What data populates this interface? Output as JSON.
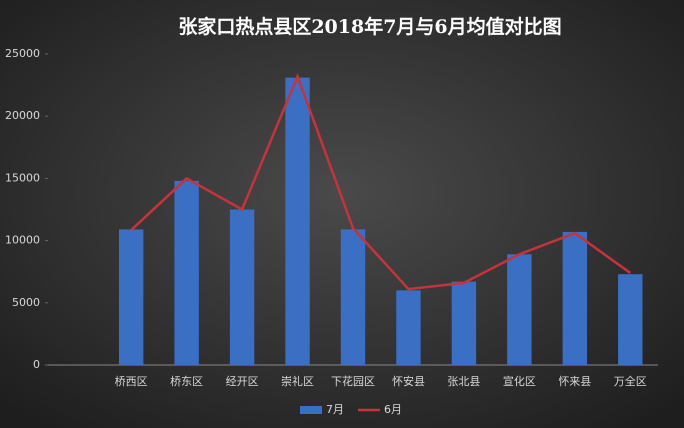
{
  "chart_data": {
    "type": "combo",
    "title": "张家口热点县区2018年7月与6月均值对比图",
    "categories": [
      null,
      "桥西区",
      "桥东区",
      "经开区",
      "崇礼区",
      "下花园区",
      "怀安县",
      "张北县",
      "宣化区",
      "怀来县",
      "万全区"
    ],
    "series": [
      {
        "name": "7月",
        "kind": "bar",
        "color": "#3a6fc4",
        "values": [
          null,
          10900,
          14800,
          12500,
          23100,
          10900,
          6000,
          6700,
          8900,
          10700,
          7300
        ]
      },
      {
        "name": "6月",
        "kind": "line",
        "color": "#c8323c",
        "values": [
          null,
          10850,
          15000,
          12500,
          23200,
          11000,
          6100,
          6600,
          8900,
          10600,
          7400
        ]
      }
    ],
    "ylim": [
      0,
      25000
    ],
    "yticks": [
      0,
      5000,
      10000,
      15000,
      20000,
      25000
    ],
    "grid": false,
    "legend": "bottom"
  }
}
